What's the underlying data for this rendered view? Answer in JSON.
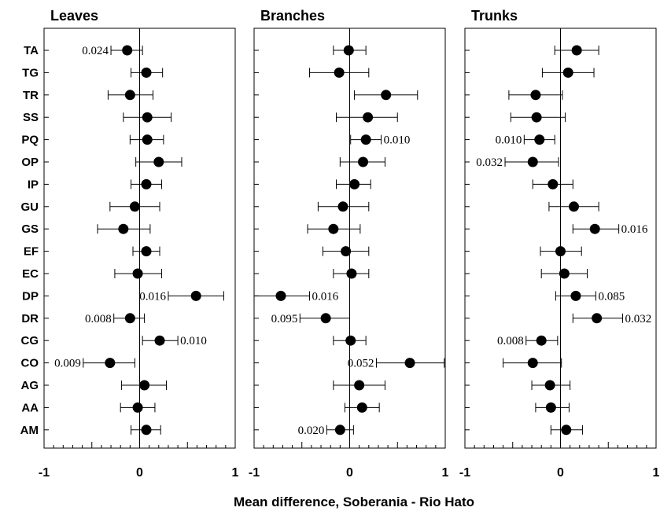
{
  "chart_data": {
    "type": "scatter",
    "xlabel": "Mean difference, Soberania - Rio Hato",
    "categories": [
      "TA",
      "TG",
      "TR",
      "SS",
      "PQ",
      "OP",
      "IP",
      "GU",
      "GS",
      "EF",
      "EC",
      "DP",
      "DR",
      "CG",
      "CO",
      "AG",
      "AA",
      "AM"
    ],
    "xlim": [
      -1,
      1
    ],
    "xticks": [
      "-1",
      "0",
      "1"
    ],
    "grid": false,
    "panels": [
      {
        "title": "Leaves",
        "points": [
          {
            "mean": -0.13,
            "lo": -0.3,
            "hi": 0.03,
            "label": "0.024",
            "label_side": "left"
          },
          {
            "mean": 0.07,
            "lo": -0.09,
            "hi": 0.24,
            "label": "",
            "label_side": ""
          },
          {
            "mean": -0.1,
            "lo": -0.33,
            "hi": 0.14,
            "label": "",
            "label_side": ""
          },
          {
            "mean": 0.08,
            "lo": -0.17,
            "hi": 0.33,
            "label": "",
            "label_side": ""
          },
          {
            "mean": 0.08,
            "lo": -0.1,
            "hi": 0.25,
            "label": "",
            "label_side": ""
          },
          {
            "mean": 0.2,
            "lo": -0.04,
            "hi": 0.44,
            "label": "",
            "label_side": ""
          },
          {
            "mean": 0.07,
            "lo": -0.09,
            "hi": 0.23,
            "label": "",
            "label_side": ""
          },
          {
            "mean": -0.05,
            "lo": -0.31,
            "hi": 0.21,
            "label": "",
            "label_side": ""
          },
          {
            "mean": -0.17,
            "lo": -0.44,
            "hi": 0.11,
            "label": "",
            "label_side": ""
          },
          {
            "mean": 0.07,
            "lo": -0.07,
            "hi": 0.21,
            "label": "",
            "label_side": ""
          },
          {
            "mean": -0.02,
            "lo": -0.26,
            "hi": 0.23,
            "label": "",
            "label_side": ""
          },
          {
            "mean": 0.59,
            "lo": 0.3,
            "hi": 0.88,
            "label": "0.016",
            "label_side": "left"
          },
          {
            "mean": -0.1,
            "lo": -0.27,
            "hi": 0.05,
            "label": "0.008",
            "label_side": "left"
          },
          {
            "mean": 0.21,
            "lo": 0.03,
            "hi": 0.4,
            "label": "0.010",
            "label_side": "right"
          },
          {
            "mean": -0.31,
            "lo": -0.59,
            "hi": -0.05,
            "label": "0.009",
            "label_side": "left"
          },
          {
            "mean": 0.05,
            "lo": -0.19,
            "hi": 0.28,
            "label": "",
            "label_side": ""
          },
          {
            "mean": -0.02,
            "lo": -0.2,
            "hi": 0.16,
            "label": "",
            "label_side": ""
          },
          {
            "mean": 0.07,
            "lo": -0.09,
            "hi": 0.22,
            "label": "",
            "label_side": ""
          }
        ]
      },
      {
        "title": "Branches",
        "points": [
          {
            "mean": -0.01,
            "lo": -0.17,
            "hi": 0.17,
            "label": "",
            "label_side": ""
          },
          {
            "mean": -0.11,
            "lo": -0.42,
            "hi": 0.2,
            "label": "",
            "label_side": ""
          },
          {
            "mean": 0.38,
            "lo": 0.05,
            "hi": 0.71,
            "label": "",
            "label_side": ""
          },
          {
            "mean": 0.19,
            "lo": -0.14,
            "hi": 0.5,
            "label": "",
            "label_side": ""
          },
          {
            "mean": 0.17,
            "lo": 0.01,
            "hi": 0.33,
            "label": "0.010",
            "label_side": "right"
          },
          {
            "mean": 0.14,
            "lo": -0.1,
            "hi": 0.37,
            "label": "",
            "label_side": ""
          },
          {
            "mean": 0.05,
            "lo": -0.14,
            "hi": 0.22,
            "label": "",
            "label_side": ""
          },
          {
            "mean": -0.07,
            "lo": -0.33,
            "hi": 0.2,
            "label": "",
            "label_side": ""
          },
          {
            "mean": -0.17,
            "lo": -0.44,
            "hi": 0.11,
            "label": "",
            "label_side": ""
          },
          {
            "mean": -0.04,
            "lo": -0.28,
            "hi": 0.2,
            "label": "",
            "label_side": ""
          },
          {
            "mean": 0.02,
            "lo": -0.17,
            "hi": 0.2,
            "label": "",
            "label_side": ""
          },
          {
            "mean": -0.72,
            "lo": -1.0,
            "hi": -0.42,
            "label": "0.016",
            "label_side": "right"
          },
          {
            "mean": -0.25,
            "lo": -0.52,
            "hi": 0.0,
            "label": "0.095",
            "label_side": "left"
          },
          {
            "mean": 0.01,
            "lo": -0.17,
            "hi": 0.17,
            "label": "",
            "label_side": ""
          },
          {
            "mean": 0.63,
            "lo": 0.28,
            "hi": 0.99,
            "label": "0.052",
            "label_side": "left"
          },
          {
            "mean": 0.1,
            "lo": -0.17,
            "hi": 0.37,
            "label": "",
            "label_side": ""
          },
          {
            "mean": 0.13,
            "lo": -0.05,
            "hi": 0.31,
            "label": "",
            "label_side": ""
          },
          {
            "mean": -0.1,
            "lo": -0.24,
            "hi": 0.04,
            "label": "0.020",
            "label_side": "left"
          }
        ]
      },
      {
        "title": "Trunks",
        "points": [
          {
            "mean": 0.17,
            "lo": -0.06,
            "hi": 0.4,
            "label": "",
            "label_side": ""
          },
          {
            "mean": 0.08,
            "lo": -0.19,
            "hi": 0.35,
            "label": "",
            "label_side": ""
          },
          {
            "mean": -0.26,
            "lo": -0.54,
            "hi": 0.02,
            "label": "",
            "label_side": ""
          },
          {
            "mean": -0.25,
            "lo": -0.52,
            "hi": 0.05,
            "label": "",
            "label_side": ""
          },
          {
            "mean": -0.22,
            "lo": -0.38,
            "hi": -0.06,
            "label": "0.010",
            "label_side": "left"
          },
          {
            "mean": -0.29,
            "lo": -0.58,
            "hi": -0.02,
            "label": "0.032",
            "label_side": "left"
          },
          {
            "mean": -0.08,
            "lo": -0.29,
            "hi": 0.13,
            "label": "",
            "label_side": ""
          },
          {
            "mean": 0.14,
            "lo": -0.12,
            "hi": 0.4,
            "label": "",
            "label_side": ""
          },
          {
            "mean": 0.36,
            "lo": 0.13,
            "hi": 0.61,
            "label": "0.016",
            "label_side": "right"
          },
          {
            "mean": 0.0,
            "lo": -0.21,
            "hi": 0.22,
            "label": "",
            "label_side": ""
          },
          {
            "mean": 0.04,
            "lo": -0.2,
            "hi": 0.28,
            "label": "",
            "label_side": ""
          },
          {
            "mean": 0.16,
            "lo": -0.05,
            "hi": 0.37,
            "label": "0.085",
            "label_side": "right"
          },
          {
            "mean": 0.38,
            "lo": 0.13,
            "hi": 0.65,
            "label": "0.032",
            "label_side": "right"
          },
          {
            "mean": -0.2,
            "lo": -0.36,
            "hi": -0.03,
            "label": "0.008",
            "label_side": "left"
          },
          {
            "mean": -0.29,
            "lo": -0.6,
            "hi": 0.01,
            "label": "",
            "label_side": ""
          },
          {
            "mean": -0.11,
            "lo": -0.3,
            "hi": 0.1,
            "label": "",
            "label_side": ""
          },
          {
            "mean": -0.1,
            "lo": -0.26,
            "hi": 0.09,
            "label": "",
            "label_side": ""
          },
          {
            "mean": 0.06,
            "lo": -0.1,
            "hi": 0.23,
            "label": "",
            "label_side": ""
          }
        ]
      }
    ]
  }
}
